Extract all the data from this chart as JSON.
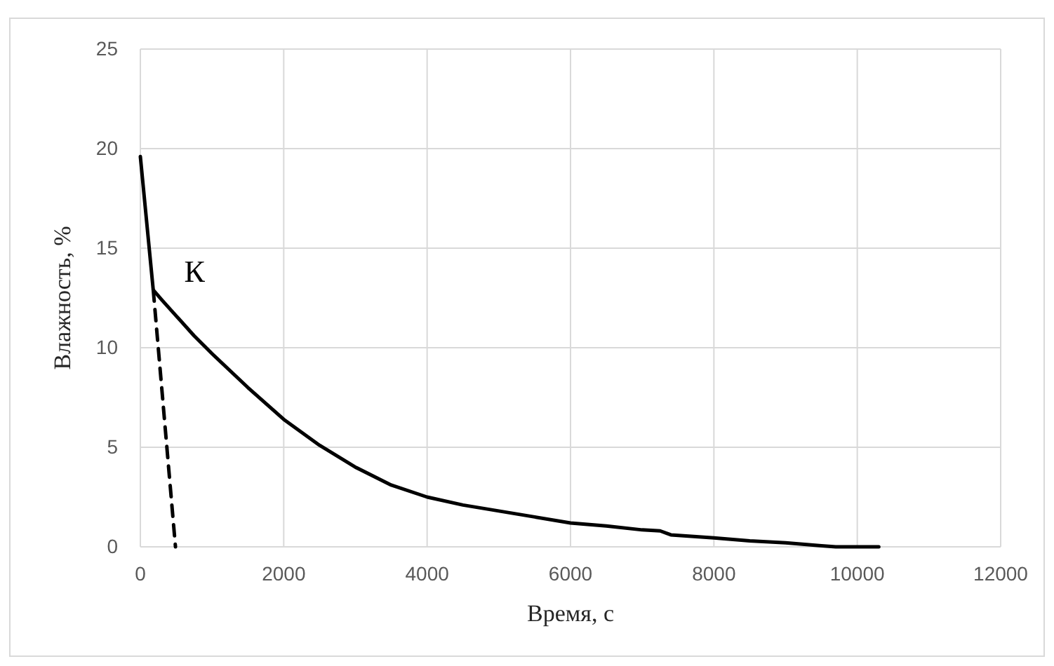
{
  "chart_data": {
    "type": "line",
    "xlabel": "Время, с",
    "ylabel": "Влажность, %",
    "xlim": [
      0,
      12000
    ],
    "xticks": [
      0,
      2000,
      4000,
      6000,
      8000,
      10000,
      12000
    ],
    "ylim": [
      0,
      25
    ],
    "yticks": [
      0,
      5,
      10,
      15,
      20,
      25
    ],
    "grid": true,
    "marker": "none",
    "annotations": [
      {
        "text": "К",
        "x": 180,
        "y": 12.9
      }
    ],
    "series": [
      {
        "color": "#000000",
        "line_style": "solid",
        "x": [
          0,
          180,
          300,
          500,
          750,
          1000,
          1500,
          2000,
          2500,
          3000,
          3500,
          4000,
          4500,
          5000,
          5500,
          6000,
          6500,
          7000,
          7250,
          7400,
          8000,
          8500,
          9000,
          9500,
          9700,
          10000,
          10300
        ],
        "values": [
          19.6,
          12.9,
          12.4,
          11.6,
          10.6,
          9.7,
          8.0,
          6.4,
          5.1,
          4.0,
          3.1,
          2.5,
          2.1,
          1.8,
          1.5,
          1.2,
          1.05,
          0.85,
          0.8,
          0.6,
          0.45,
          0.3,
          0.2,
          0.05,
          0,
          0,
          0
        ]
      },
      {
        "color": "#000000",
        "line_style": "dashed",
        "x": [
          180,
          490
        ],
        "values": [
          12.9,
          0
        ]
      }
    ]
  }
}
